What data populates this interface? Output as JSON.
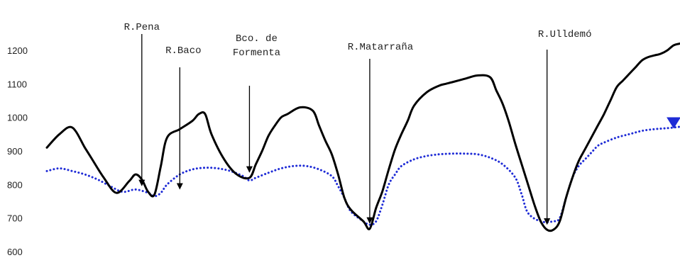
{
  "chart_data": {
    "type": "line",
    "title": "",
    "xlabel": "",
    "ylabel": "",
    "ylim": [
      600,
      1250
    ],
    "xlim": [
      0,
      100
    ],
    "yticks": [
      600,
      700,
      800,
      900,
      1000,
      1100,
      1200
    ],
    "grid": false,
    "legend": "none",
    "series": [
      {
        "style": "solid",
        "color": "#000000",
        "x": [
          0,
          2,
          4,
          6,
          7,
          9,
          11,
          13,
          14,
          15,
          16,
          17,
          18,
          19,
          21,
          23,
          24,
          25,
          26,
          28,
          30,
          32,
          33,
          34,
          35,
          36,
          37,
          38,
          40,
          42,
          43,
          44,
          45,
          46,
          47,
          48,
          50,
          51,
          52,
          53,
          54,
          55,
          56,
          57,
          58,
          60,
          62,
          63,
          64,
          66,
          68,
          70,
          71,
          72,
          73,
          74,
          75,
          76,
          77,
          78,
          79,
          80,
          81,
          82,
          83,
          84,
          85,
          86,
          87,
          88,
          89,
          90,
          91,
          92,
          93,
          94,
          95,
          96,
          97,
          98,
          99,
          100
        ],
        "values": [
          910,
          950,
          970,
          910,
          880,
          820,
          775,
          810,
          830,
          815,
          778,
          770,
          855,
          940,
          965,
          990,
          1010,
          1010,
          950,
          875,
          830,
          820,
          860,
          900,
          945,
          975,
          1000,
          1010,
          1030,
          1020,
          975,
          930,
          890,
          830,
          760,
          725,
          690,
          668,
          730,
          780,
          845,
          905,
          950,
          990,
          1035,
          1075,
          1095,
          1100,
          1105,
          1115,
          1125,
          1120,
          1080,
          1040,
          985,
          920,
          860,
          800,
          740,
          690,
          665,
          665,
          690,
          760,
          820,
          870,
          905,
          940,
          975,
          1010,
          1050,
          1090,
          1110,
          1130,
          1150,
          1170,
          1180,
          1185,
          1190,
          1200,
          1215,
          1220
        ]
      },
      {
        "style": "dotted",
        "color": "#1e2bd6",
        "x": [
          0,
          2,
          4,
          6,
          8,
          10,
          12,
          14,
          16,
          17,
          18,
          19,
          21,
          23,
          25,
          27,
          29,
          31,
          32,
          33,
          35,
          37,
          39,
          41,
          43,
          45,
          46,
          47,
          48,
          50,
          51,
          52,
          53,
          54,
          55,
          56,
          58,
          60,
          62,
          64,
          66,
          68,
          70,
          72,
          74,
          75,
          76,
          78,
          80,
          81,
          82,
          83,
          84,
          85,
          86,
          87,
          88,
          90,
          92,
          94,
          96,
          98,
          100
        ],
        "values": [
          840,
          848,
          840,
          830,
          815,
          795,
          778,
          785,
          775,
          765,
          775,
          800,
          830,
          845,
          850,
          848,
          840,
          825,
          812,
          820,
          835,
          848,
          855,
          855,
          845,
          825,
          795,
          760,
          720,
          690,
          680,
          690,
          740,
          800,
          830,
          855,
          875,
          885,
          890,
          892,
          892,
          890,
          880,
          860,
          820,
          770,
          715,
          690,
          690,
          700,
          760,
          820,
          855,
          875,
          895,
          915,
          925,
          940,
          950,
          960,
          965,
          968,
          972
        ]
      }
    ],
    "annotations": [
      {
        "label": "R.Pena",
        "target": {
          "x": 15,
          "y": 780
        }
      },
      {
        "label": "R.Baco",
        "target": {
          "x": 21,
          "y": 770
        }
      },
      {
        "label": "Bco. de\nFormenta",
        "target": {
          "x": 32,
          "y": 820
        }
      },
      {
        "label": "R.Matarraña",
        "target": {
          "x": 51,
          "y": 668
        }
      },
      {
        "label": "R.Ulldemó",
        "target": {
          "x": 79,
          "y": 665
        }
      }
    ],
    "marker": {
      "shape": "down-triangle",
      "color": "#1e2bd6",
      "x": 99,
      "y": 975
    }
  }
}
